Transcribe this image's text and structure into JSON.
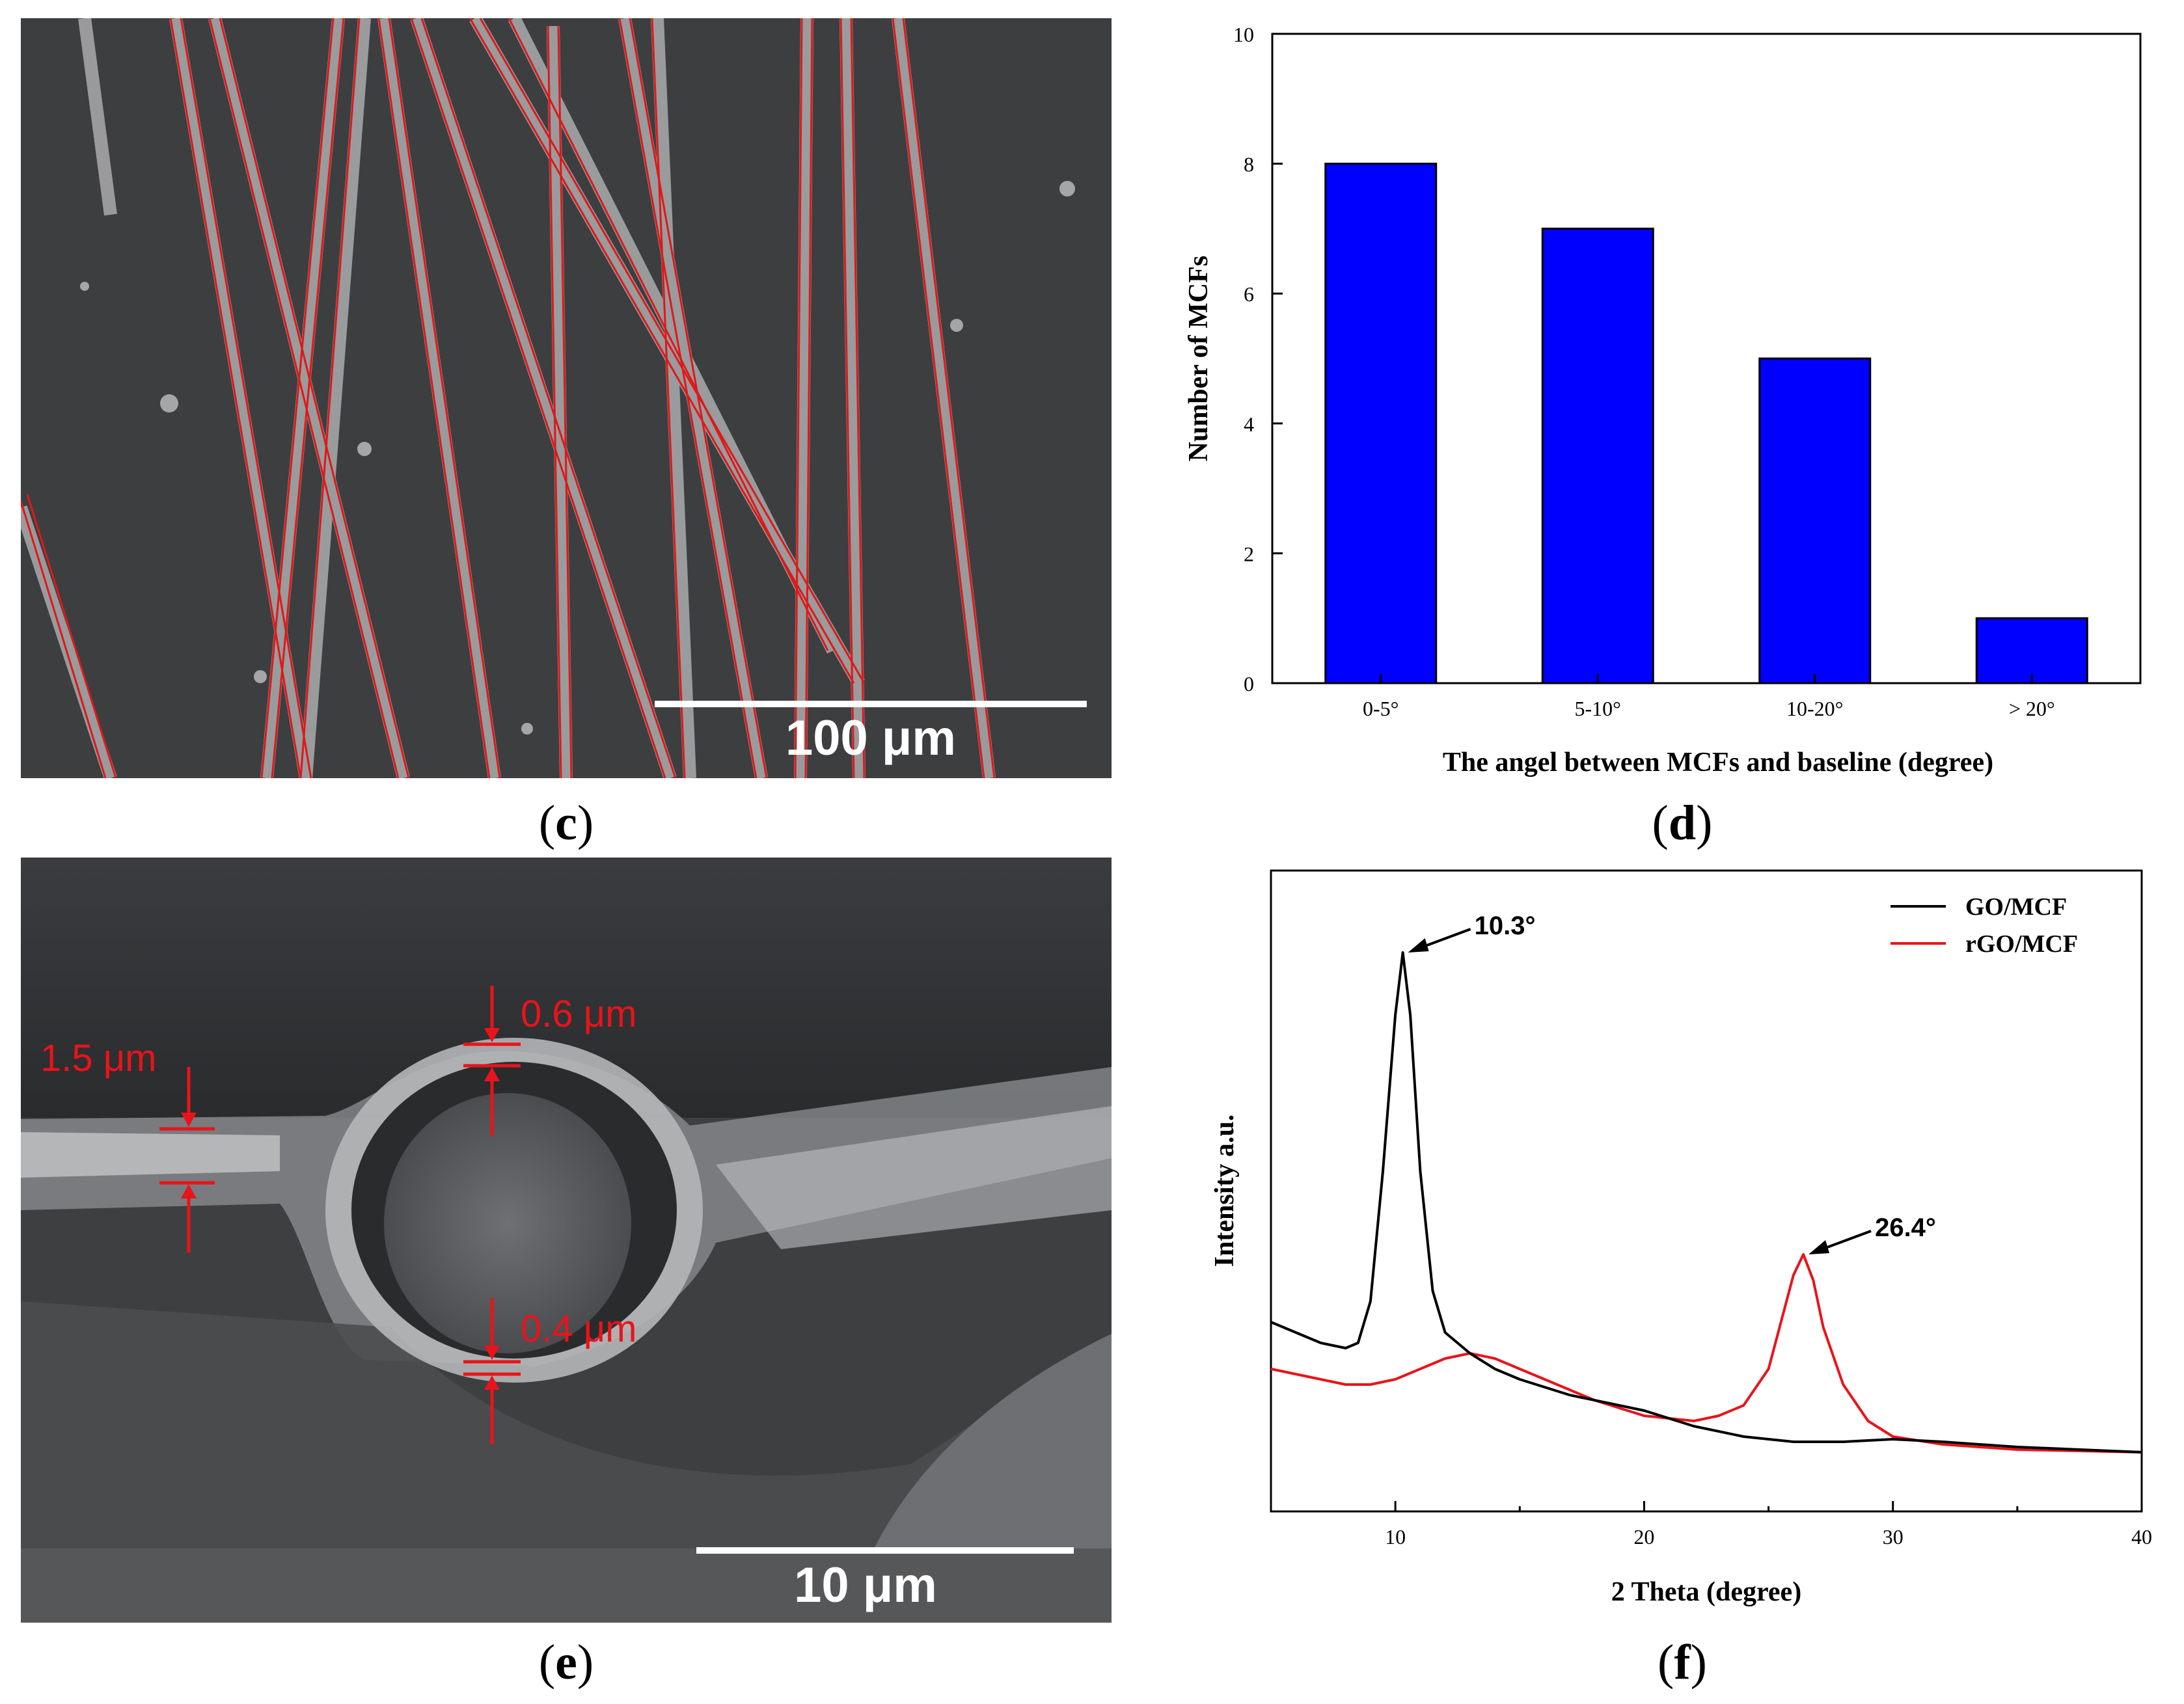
{
  "panels": {
    "c": {
      "label": "(c)",
      "label_letter": "c",
      "scale_bar": "100 μm"
    },
    "d": {
      "label": "(d)",
      "label_letter": "d"
    },
    "e": {
      "label": "(e)",
      "label_letter": "e",
      "scale_bar": "10 μm",
      "annotations": [
        "0.6 μm",
        "1.5 μm",
        "0.4 μm"
      ]
    },
    "f": {
      "label": "(f)",
      "label_letter": "f"
    }
  },
  "colors": {
    "bar_fill": "#0000ff",
    "go_line": "#000000",
    "rgo_line": "#e8141a",
    "annotation_red": "#e8141a",
    "sem_bg": "#3c3d3f"
  },
  "chart_data": [
    {
      "panel": "d",
      "type": "bar",
      "categories": [
        "0-5°",
        "5-10°",
        "10-20°",
        "> 20°"
      ],
      "values": [
        8,
        7,
        5,
        1
      ],
      "title": "",
      "xlabel": "The angel between MCFs and baseline (degree)",
      "ylabel": "Number of MCFs",
      "ylim": [
        0,
        10
      ],
      "yticks": [
        0,
        2,
        4,
        6,
        8,
        10
      ],
      "grid": false
    },
    {
      "panel": "f",
      "type": "line",
      "xlabel": "2 Theta (degree)",
      "ylabel": "Intensity a.u.",
      "xlim": [
        5,
        40
      ],
      "xticks": [
        10,
        20,
        30,
        40
      ],
      "legend_position": "top-right",
      "series": [
        {
          "name": "GO/MCF",
          "x": [
            5,
            6,
            7,
            8,
            8.5,
            9,
            9.5,
            10,
            10.3,
            10.6,
            11,
            11.5,
            12,
            13,
            14,
            15,
            17,
            20,
            22,
            24,
            26,
            28,
            30,
            32,
            35,
            40
          ],
          "y": [
            0.26,
            0.24,
            0.22,
            0.21,
            0.22,
            0.3,
            0.55,
            0.85,
            0.97,
            0.85,
            0.55,
            0.32,
            0.24,
            0.2,
            0.17,
            0.15,
            0.12,
            0.09,
            0.06,
            0.04,
            0.03,
            0.03,
            0.035,
            0.03,
            0.02,
            0.01
          ]
        },
        {
          "name": "rGO/MCF",
          "x": [
            5,
            6,
            7,
            8,
            9,
            10,
            11,
            12,
            13,
            14,
            16,
            18,
            20,
            22,
            23,
            24,
            25,
            25.5,
            26,
            26.4,
            26.8,
            27.2,
            28,
            29,
            30,
            32,
            35,
            40
          ],
          "y": [
            0.17,
            0.16,
            0.15,
            0.14,
            0.14,
            0.15,
            0.17,
            0.19,
            0.2,
            0.19,
            0.15,
            0.11,
            0.08,
            0.07,
            0.08,
            0.1,
            0.17,
            0.26,
            0.35,
            0.39,
            0.34,
            0.25,
            0.14,
            0.07,
            0.04,
            0.025,
            0.015,
            0.01
          ]
        }
      ],
      "annotations": [
        {
          "text": "10.3°",
          "x": 10.3,
          "y": 0.97
        },
        {
          "text": "26.4°",
          "x": 26.4,
          "y": 0.39
        }
      ]
    }
  ]
}
